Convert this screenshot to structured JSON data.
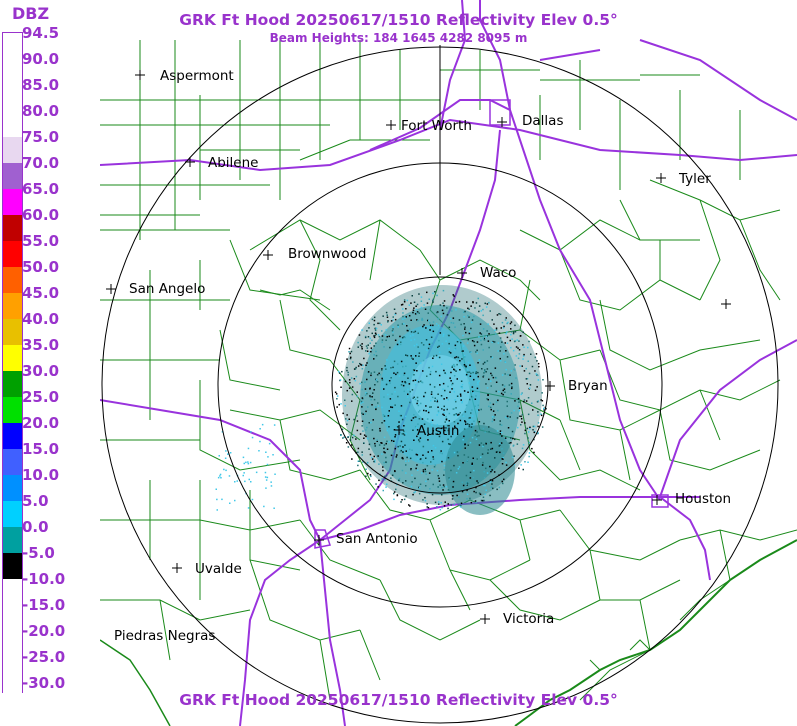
{
  "title": "GRK Ft Hood 20250617/1510 Reflectivity Elev 0.5°",
  "subtitle": "Beam Heights: 184 1645 4282 8095 m",
  "legend": {
    "unit": "DBZ",
    "labels": [
      "94.5",
      "90.0",
      "85.0",
      "80.0",
      "75.0",
      "70.0",
      "65.0",
      "60.0",
      "55.0",
      "50.0",
      "45.0",
      "40.0",
      "35.0",
      "30.0",
      "25.0",
      "20.0",
      "15.0",
      "10.0",
      "5.0",
      "0.0",
      "-5.0",
      "-10.0",
      "-15.0",
      "-20.0",
      "-25.0",
      "-30.0"
    ],
    "colors": [
      "#ffffff",
      "#ffffff",
      "#ffffff",
      "#ffffff",
      "#e8d8f0",
      "#a060d0",
      "#ff00ff",
      "#c00000",
      "#ff0000",
      "#ff6000",
      "#ffa000",
      "#e8c000",
      "#ffff00",
      "#00a000",
      "#00e000",
      "#0000ff",
      "#4060ff",
      "#0090ff",
      "#00d0ff",
      "#00a0a0",
      "#000000",
      "#ffffff",
      "#ffffff",
      "#ffffff",
      "#ffffff",
      "#ffffff"
    ]
  },
  "cities": [
    {
      "name": "Aspermont"
    },
    {
      "name": "Fort Worth"
    },
    {
      "name": "Dallas"
    },
    {
      "name": "Abilene"
    },
    {
      "name": "Tyler"
    },
    {
      "name": "Brownwood"
    },
    {
      "name": "San Angelo"
    },
    {
      "name": "Waco"
    },
    {
      "name": "Bryan"
    },
    {
      "name": "Austin"
    },
    {
      "name": "Houston"
    },
    {
      "name": "San Antonio"
    },
    {
      "name": "Uvalde"
    },
    {
      "name": "Piedras Negras"
    },
    {
      "name": "Victoria"
    }
  ],
  "colors": {
    "label_purple": "#9933cc",
    "county_lines": "#1a8a1a",
    "highways": "#9933dd",
    "range_rings": "#000000",
    "echo_teal": "#3aa8b8",
    "echo_cyan": "#40c8e8"
  }
}
